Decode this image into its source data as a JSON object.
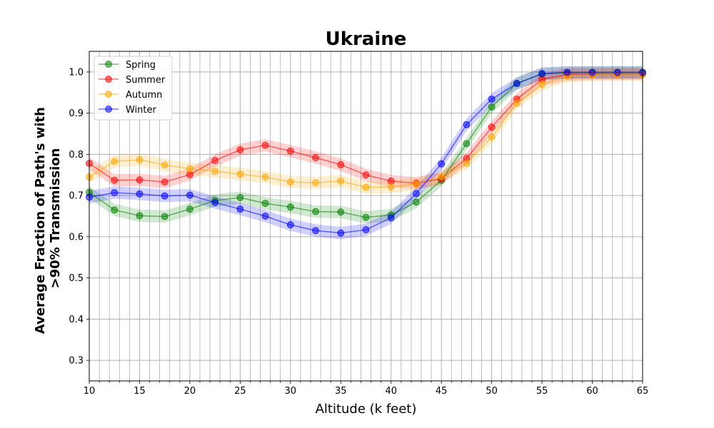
{
  "chart_data": {
    "type": "line",
    "title": "Ukraine",
    "xlabel": "Altitude (k feet)",
    "ylabel_lines": [
      "Average Fraction of Path's with",
      ">90% Transmission"
    ],
    "xlim": [
      10,
      65
    ],
    "ylim": [
      0.25,
      1.05
    ],
    "x_major_ticks": [
      10,
      15,
      20,
      25,
      30,
      35,
      40,
      45,
      50,
      55,
      60,
      65
    ],
    "x_minor_step": 1,
    "y_ticks": [
      0.3,
      0.4,
      0.5,
      0.6,
      0.7,
      0.8,
      0.9,
      1.0
    ],
    "y_tick_labels": [
      "0.3",
      "0.4",
      "0.5",
      "0.6",
      "0.7",
      "0.8",
      "0.9",
      "1.0"
    ],
    "grid": true,
    "legend_position": "top-left",
    "x": [
      10,
      12.5,
      15,
      17.5,
      20,
      22.5,
      25,
      27.5,
      30,
      32.5,
      35,
      37.5,
      40,
      42.5,
      45,
      47.5,
      50,
      52.5,
      55,
      57.5,
      60,
      62.5,
      65
    ],
    "band_halfwidth": 0.015,
    "series": [
      {
        "name": "Spring",
        "color": "#008000",
        "values": [
          0.708,
          0.665,
          0.651,
          0.649,
          0.667,
          0.688,
          0.695,
          0.681,
          0.672,
          0.661,
          0.66,
          0.647,
          0.653,
          0.684,
          0.737,
          0.826,
          0.915,
          0.972,
          0.995,
          0.998,
          0.999,
          0.999,
          0.999
        ]
      },
      {
        "name": "Summer",
        "color": "#ff0000",
        "values": [
          0.778,
          0.737,
          0.738,
          0.733,
          0.751,
          0.785,
          0.811,
          0.822,
          0.808,
          0.792,
          0.775,
          0.75,
          0.735,
          0.73,
          0.741,
          0.79,
          0.866,
          0.934,
          0.982,
          0.994,
          0.995,
          0.995,
          0.995
        ]
      },
      {
        "name": "Autumn",
        "color": "#ffa500",
        "values": [
          0.745,
          0.783,
          0.787,
          0.774,
          0.765,
          0.759,
          0.752,
          0.745,
          0.733,
          0.731,
          0.735,
          0.72,
          0.721,
          0.728,
          0.746,
          0.778,
          0.842,
          0.924,
          0.97,
          0.99,
          0.993,
          0.994,
          0.994
        ]
      },
      {
        "name": "Winter",
        "color": "#0000ff",
        "values": [
          0.696,
          0.707,
          0.704,
          0.699,
          0.701,
          0.683,
          0.667,
          0.65,
          0.629,
          0.615,
          0.609,
          0.617,
          0.646,
          0.705,
          0.777,
          0.872,
          0.934,
          0.972,
          0.996,
          0.999,
          0.999,
          0.999,
          0.999
        ]
      }
    ]
  }
}
